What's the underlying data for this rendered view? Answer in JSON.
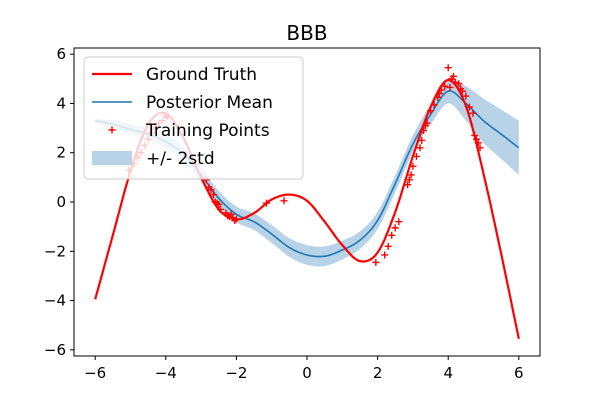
{
  "chart_data": {
    "type": "line",
    "title": "BBB",
    "xlabel": "",
    "ylabel": "",
    "xlim": [
      -6.6,
      6.6
    ],
    "ylim": [
      -6.25,
      6.25
    ],
    "xticks": [
      -6,
      -4,
      -2,
      0,
      2,
      4,
      6
    ],
    "yticks": [
      -6,
      -4,
      -2,
      0,
      2,
      4,
      6
    ],
    "xtick_labels": [
      "−6",
      "−4",
      "−2",
      "0",
      "2",
      "4",
      "6"
    ],
    "ytick_labels": [
      "−6",
      "−4",
      "−2",
      "0",
      "2",
      "4",
      "6"
    ],
    "grid": false,
    "legend_position": "top-left",
    "legend": [
      "Ground Truth",
      "Posterior Mean",
      "Training Points",
      "+/- 2std"
    ],
    "colors": {
      "ground_truth": "#ff0000",
      "posterior_mean": "#1f77b4",
      "band": "#a6c8e1",
      "training_points": "#ff0000"
    },
    "series": [
      {
        "name": "Ground Truth",
        "x": [
          -6,
          -5.5,
          -5,
          -4.5,
          -4,
          -3.5,
          -3,
          -2.5,
          -2,
          -1.5,
          -1,
          -0.5,
          0,
          0.5,
          1,
          1.5,
          2,
          2.5,
          3,
          3.5,
          4,
          4.5,
          5,
          5.5,
          6
        ],
        "y": [
          -3.95,
          -1.35,
          1.25,
          3.15,
          3.6,
          2.6,
          1.0,
          -0.3,
          -0.7,
          -0.45,
          0.1,
          0.3,
          0.05,
          -0.8,
          -1.75,
          -2.4,
          -2.05,
          -0.4,
          1.85,
          3.85,
          4.95,
          3.9,
          1.15,
          -2.1,
          -5.55
        ]
      },
      {
        "name": "Posterior Mean",
        "x": [
          -6,
          -5.5,
          -5,
          -4.5,
          -4,
          -3.5,
          -3,
          -2.5,
          -2,
          -1.5,
          -1,
          -0.5,
          0,
          0.5,
          1,
          1.5,
          2,
          2.5,
          3,
          3.5,
          4,
          4.5,
          5,
          5.5,
          6
        ],
        "y": [
          3.3,
          3.15,
          2.95,
          2.75,
          2.45,
          1.95,
          1.1,
          0.15,
          -0.5,
          -0.8,
          -1.3,
          -1.85,
          -2.15,
          -2.2,
          -1.95,
          -1.55,
          -0.75,
          0.75,
          2.35,
          3.55,
          4.5,
          4.0,
          3.3,
          2.75,
          2.2
        ],
        "std2": [
          0.1,
          0.15,
          0.2,
          0.25,
          0.28,
          0.28,
          0.28,
          0.3,
          0.32,
          0.34,
          0.36,
          0.38,
          0.4,
          0.4,
          0.38,
          0.36,
          0.35,
          0.35,
          0.35,
          0.4,
          0.5,
          0.7,
          0.9,
          1.0,
          1.1
        ]
      }
    ],
    "training_points": {
      "name": "Training Points",
      "x": [
        -5.05,
        -4.9,
        -4.8,
        -4.7,
        -4.6,
        -4.5,
        -4.4,
        -4.3,
        -4.2,
        -4.1,
        -4.0,
        -3.95,
        -2.85,
        -2.78,
        -2.72,
        -2.65,
        -2.6,
        -2.55,
        -2.5,
        -2.45,
        -2.3,
        -2.25,
        -2.2,
        -2.15,
        -2.1,
        -2.05,
        -2.0,
        -1.15,
        -0.65,
        1.95,
        2.2,
        2.3,
        2.4,
        2.5,
        2.6,
        2.85,
        2.9,
        2.95,
        3.0,
        3.1,
        3.2,
        3.25,
        3.3,
        3.35,
        3.4,
        3.5,
        3.6,
        3.7,
        3.75,
        3.8,
        3.9,
        4.0,
        4.05,
        4.1,
        4.15,
        4.2,
        4.3,
        4.35,
        4.4,
        4.5,
        4.6,
        4.7,
        4.75,
        4.8,
        4.85,
        4.9
      ],
      "y": [
        1.3,
        1.55,
        1.8,
        2.0,
        2.3,
        2.55,
        2.8,
        3.0,
        3.2,
        3.3,
        3.5,
        3.45,
        0.9,
        0.6,
        0.5,
        0.3,
        0.0,
        -0.05,
        -0.1,
        -0.3,
        -0.45,
        -0.55,
        -0.6,
        -0.5,
        -0.65,
        -0.75,
        -0.7,
        -0.05,
        0.05,
        -2.45,
        -2.15,
        -1.8,
        -1.35,
        -1.05,
        -0.8,
        0.7,
        0.9,
        1.1,
        1.45,
        1.85,
        2.2,
        2.5,
        2.9,
        3.1,
        3.2,
        3.7,
        3.95,
        4.25,
        4.4,
        4.55,
        4.7,
        5.45,
        4.65,
        5.0,
        5.1,
        4.85,
        4.8,
        4.6,
        4.5,
        4.3,
        3.85,
        3.6,
        2.7,
        2.55,
        2.4,
        2.2
      ]
    }
  }
}
